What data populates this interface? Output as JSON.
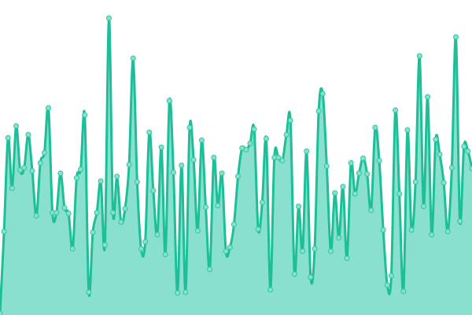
{
  "chart_data": {
    "type": "area",
    "title": "",
    "xlabel": "",
    "ylabel": "",
    "grid": false,
    "legend": "none",
    "ylim": [
      0,
      400
    ],
    "colors": {
      "line": "#1dbf98",
      "fill": "#8ae0cf",
      "point_fill": "#8ae0cf",
      "point_stroke": "#2fc7a0"
    },
    "values": [
      2,
      106,
      225,
      161,
      240,
      184,
      187,
      229,
      183,
      126,
      193,
      206,
      263,
      130,
      130,
      180,
      136,
      129,
      84,
      174,
      185,
      254,
      29,
      105,
      130,
      170,
      89,
      377,
      130,
      176,
      118,
      135,
      191,
      326,
      169,
      84,
      93,
      232,
      158,
      102,
      213,
      77,
      272,
      181,
      28,
      190,
      29,
      238,
      197,
      107,
      222,
      137,
      58,
      200,
      139,
      180,
      81,
      86,
      115,
      176,
      212,
      210,
      218,
      236,
      109,
      143,
      224,
      32,
      200,
      200,
      196,
      229,
      247,
      52,
      138,
      81,
      208,
      48,
      84,
      259,
      281,
      189,
      81,
      155,
      98,
      163,
      72,
      193,
      154,
      180,
      199,
      179,
      133,
      238,
      196,
      108,
      38,
      50,
      260,
      154,
      30,
      235,
      108,
      169,
      329,
      138,
      277,
      102,
      223,
      204,
      168,
      106,
      187,
      353,
      119,
      214,
      208,
      186
    ]
  }
}
